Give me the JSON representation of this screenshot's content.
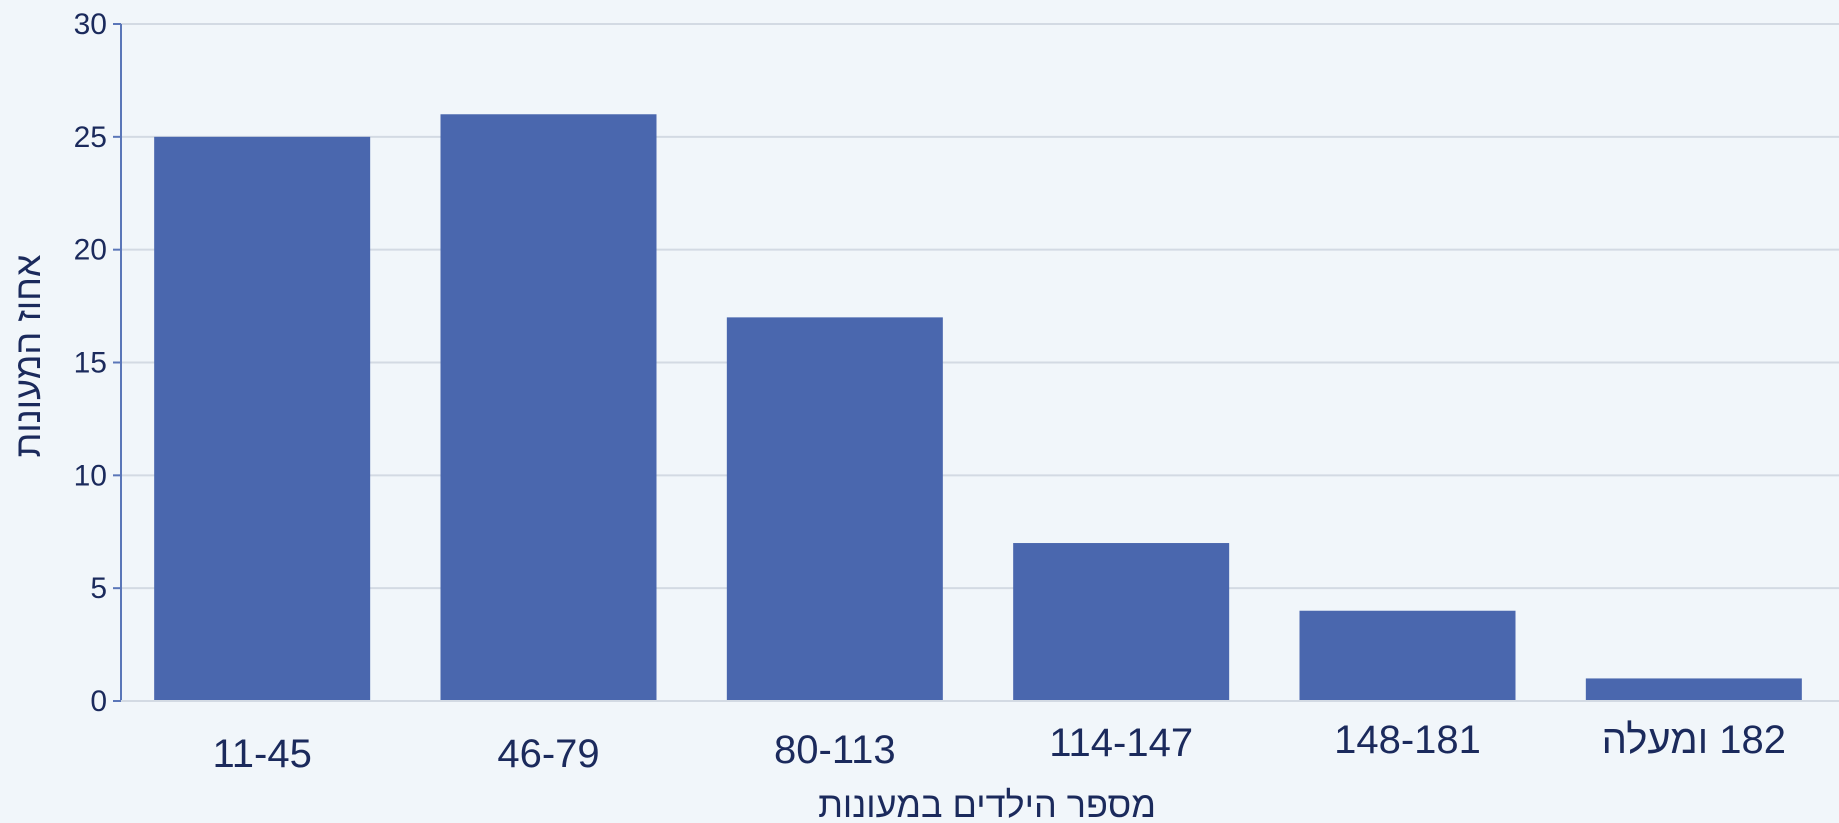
{
  "chart_data": {
    "type": "bar",
    "categories": [
      "11-45",
      "46-79",
      "80-113",
      "114-147",
      "148-181",
      "182 ומעלה"
    ],
    "values": [
      25,
      26,
      17,
      7,
      4,
      1
    ],
    "title": "",
    "xlabel": "מספר הילדים במעונות",
    "ylabel": "אחוז המעונות",
    "ylim": [
      0,
      30
    ],
    "yticks": [
      0,
      5,
      10,
      15,
      20,
      25,
      30
    ],
    "grid": true,
    "bar_color": "#4a67ae",
    "grid_color": "#d3dae3",
    "axis_color": "#5a76b8",
    "text_color": "#1b2a5c"
  }
}
